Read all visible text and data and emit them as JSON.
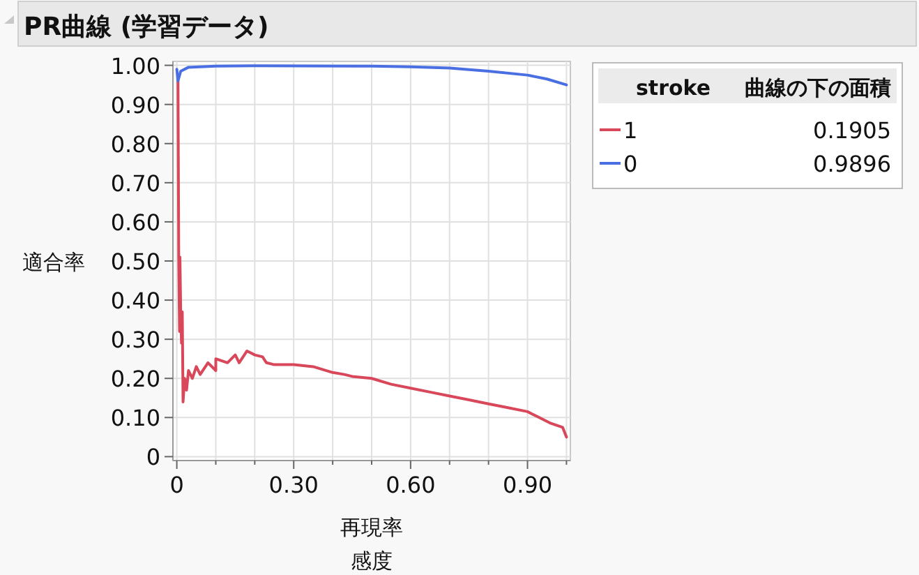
{
  "chart_data": {
    "type": "line",
    "title": "PR曲線 (学習データ)",
    "xlabel": "再現率",
    "ylabel": "適合率",
    "legend_title": "stroke",
    "legend": "top right",
    "grid": true,
    "annotations": [
      "曲線の下の面積",
      "0.1905",
      "0.9896",
      "感度"
    ],
    "xlim": [
      -0.01,
      1.01
    ],
    "ylim": [
      -0.01,
      1.01
    ],
    "xticks": [
      {
        "value": 0,
        "label": "0"
      },
      {
        "value": 0.1,
        "label": null
      },
      {
        "value": 0.2,
        "label": null
      },
      {
        "value": 0.3,
        "label": "0.30"
      },
      {
        "value": 0.4,
        "label": null
      },
      {
        "value": 0.5,
        "label": null
      },
      {
        "value": 0.6,
        "label": "0.60"
      },
      {
        "value": 0.7,
        "label": null
      },
      {
        "value": 0.8,
        "label": null
      },
      {
        "value": 0.9,
        "label": "0.90"
      },
      {
        "value": 1.0,
        "label": null
      }
    ],
    "yticks": [
      {
        "value": 0,
        "label": "0"
      },
      {
        "value": 0.1,
        "label": "0.10"
      },
      {
        "value": 0.2,
        "label": "0.20"
      },
      {
        "value": 0.3,
        "label": "0.30"
      },
      {
        "value": 0.4,
        "label": "0.40"
      },
      {
        "value": 0.5,
        "label": "0.50"
      },
      {
        "value": 0.6,
        "label": "0.60"
      },
      {
        "value": 0.7,
        "label": "0.70"
      },
      {
        "value": 0.8,
        "label": "0.80"
      },
      {
        "value": 0.9,
        "label": "0.90"
      },
      {
        "value": 1.0,
        "label": "1.00"
      }
    ],
    "series": [
      {
        "name": "1",
        "color": "#d9475a",
        "x": [
          0.003,
          0.005,
          0.007,
          0.008,
          0.01,
          0.012,
          0.014,
          0.016,
          0.02,
          0.025,
          0.03,
          0.04,
          0.05,
          0.06,
          0.08,
          0.1,
          0.1,
          0.13,
          0.15,
          0.16,
          0.18,
          0.2,
          0.22,
          0.23,
          0.25,
          0.3,
          0.35,
          0.4,
          0.43,
          0.45,
          0.5,
          0.55,
          0.6,
          0.65,
          0.7,
          0.75,
          0.8,
          0.85,
          0.9,
          0.93,
          0.96,
          0.99,
          1.0
        ],
        "values": [
          0.96,
          0.5,
          0.32,
          0.51,
          0.37,
          0.29,
          0.37,
          0.14,
          0.2,
          0.17,
          0.22,
          0.2,
          0.23,
          0.21,
          0.24,
          0.22,
          0.25,
          0.24,
          0.26,
          0.24,
          0.27,
          0.26,
          0.255,
          0.24,
          0.235,
          0.235,
          0.23,
          0.215,
          0.21,
          0.205,
          0.2,
          0.185,
          0.175,
          0.165,
          0.155,
          0.145,
          0.135,
          0.125,
          0.115,
          0.1,
          0.085,
          0.075,
          0.05
        ]
      },
      {
        "name": "0",
        "color": "#4a6fe3",
        "x": [
          0,
          0.003,
          0.01,
          0.03,
          0.1,
          0.2,
          0.5,
          0.6,
          0.7,
          0.8,
          0.9,
          0.95,
          1.0
        ],
        "values": [
          0.99,
          0.96,
          0.985,
          0.995,
          0.998,
          0.999,
          0.998,
          0.996,
          0.993,
          0.985,
          0.975,
          0.965,
          0.95
        ]
      }
    ]
  }
}
